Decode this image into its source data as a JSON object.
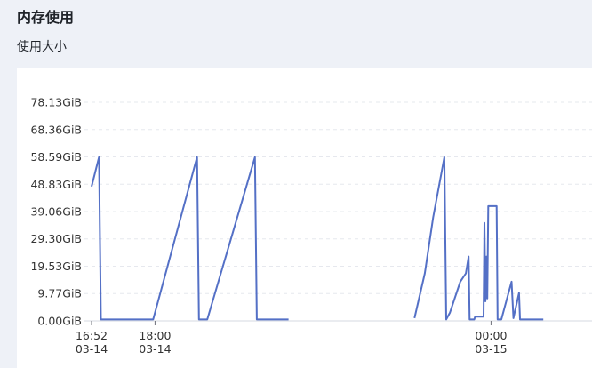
{
  "header": {
    "title": "内存使用",
    "subtitle": "使用大小"
  },
  "chart_data": {
    "type": "line",
    "title": "使用大小",
    "xlabel": "",
    "ylabel": "",
    "y_unit": "GiB",
    "ylim": [
      0,
      78.13
    ],
    "yticks": [
      "0.00GiB",
      "9.77GiB",
      "19.53GiB",
      "29.30GiB",
      "39.06GiB",
      "48.83GiB",
      "58.59GiB",
      "68.36GiB",
      "78.13GiB"
    ],
    "ytick_values": [
      0,
      9.77,
      19.53,
      29.3,
      39.06,
      48.83,
      58.59,
      68.36,
      78.13
    ],
    "xticks": [
      {
        "time": "16:52",
        "date": "03-14",
        "minutes": 0
      },
      {
        "time": "18:00",
        "date": "03-14",
        "minutes": 68
      },
      {
        "time": "00:00",
        "date": "03-15",
        "minutes": 428
      }
    ],
    "grid": true,
    "series": [
      {
        "color": "#5470c6",
        "segments": [
          [
            [
              0,
              48
            ],
            [
              8,
              58.5
            ],
            [
              10,
              0.5
            ],
            [
              66,
              0.5
            ],
            [
              113,
              58.5
            ],
            [
              115,
              0.5
            ],
            [
              124,
              0.5
            ],
            [
              175,
              58.5
            ],
            [
              177,
              0.5
            ],
            [
              211,
              0.5
            ]
          ],
          [
            [
              346,
              1
            ],
            [
              357,
              17
            ],
            [
              366,
              37
            ],
            [
              378,
              58.5
            ],
            [
              380,
              0.5
            ],
            [
              384,
              3
            ],
            [
              395,
              14
            ],
            [
              401,
              17
            ],
            [
              404,
              23
            ],
            [
              405,
              0.5
            ],
            [
              410,
              0.5
            ],
            [
              411,
              1.5
            ],
            [
              420,
              1.5
            ],
            [
              421,
              35
            ],
            [
              422,
              7
            ],
            [
              423,
              23
            ],
            [
              424,
              8
            ],
            [
              425,
              41
            ],
            [
              434,
              41
            ],
            [
              435,
              0.5
            ],
            [
              439,
              0.5
            ],
            [
              450,
              14
            ],
            [
              452,
              1
            ],
            [
              458,
              10
            ],
            [
              459,
              0.5
            ],
            [
              484,
              0.5
            ]
          ]
        ]
      }
    ]
  }
}
